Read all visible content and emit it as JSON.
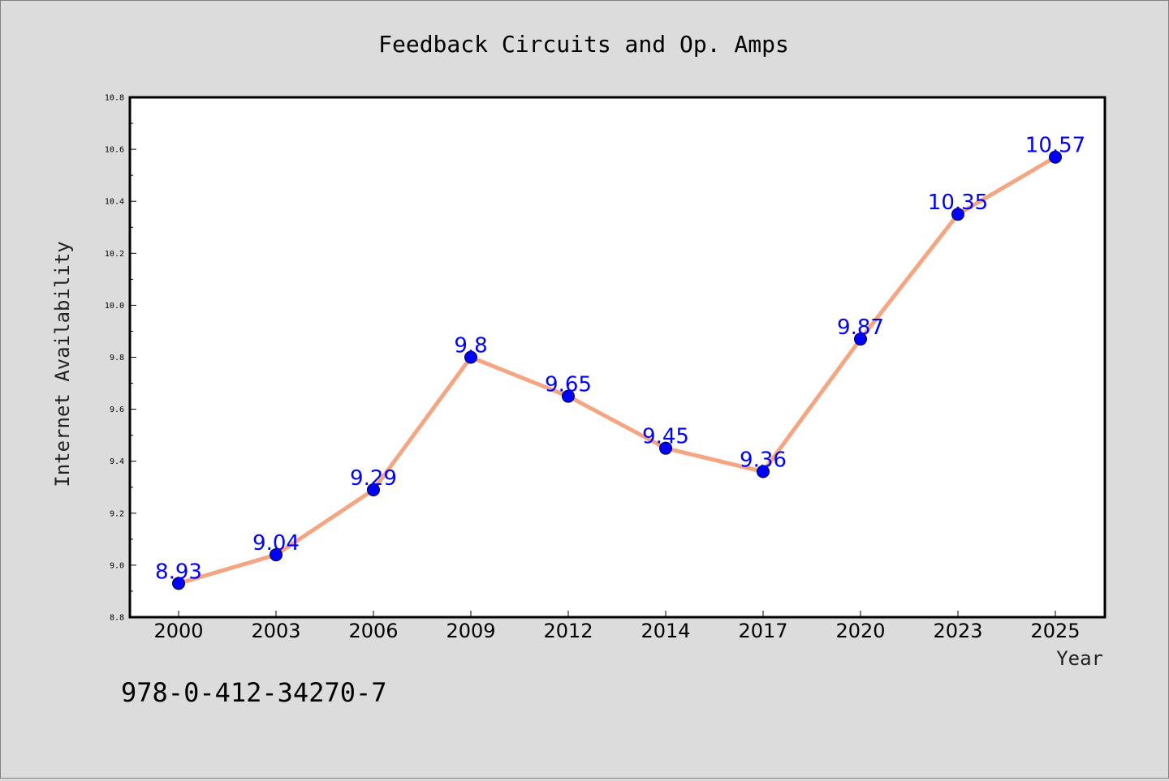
{
  "chart_data": {
    "type": "line",
    "title": "Feedback Circuits and Op. Amps",
    "xlabel": "Year",
    "ylabel": "Internet Availability",
    "categories": [
      "2000",
      "2003",
      "2006",
      "2009",
      "2012",
      "2014",
      "2017",
      "2020",
      "2023",
      "2025"
    ],
    "series": [
      {
        "values": [
          8.93,
          9.04,
          9.29,
          9.8,
          9.65,
          9.45,
          9.36,
          9.87,
          10.35,
          10.57
        ]
      }
    ],
    "data_labels": [
      "8.93",
      "9.04",
      "9.29",
      "9.8",
      "9.65",
      "9.45",
      "9.36",
      "9.87",
      "10.35",
      "10.57"
    ],
    "ylim": [
      8.8,
      10.8
    ],
    "yticks": [
      "8.8",
      "9.0",
      "9.2",
      "9.4",
      "9.6",
      "9.8",
      "10.0",
      "10.2",
      "10.4",
      "10.6",
      "10.8"
    ],
    "grid": false,
    "line_color": "#f4a582",
    "marker_color": "#0000ff",
    "label_color": "#0000ff"
  },
  "annotation": "978-0-412-34270-7"
}
